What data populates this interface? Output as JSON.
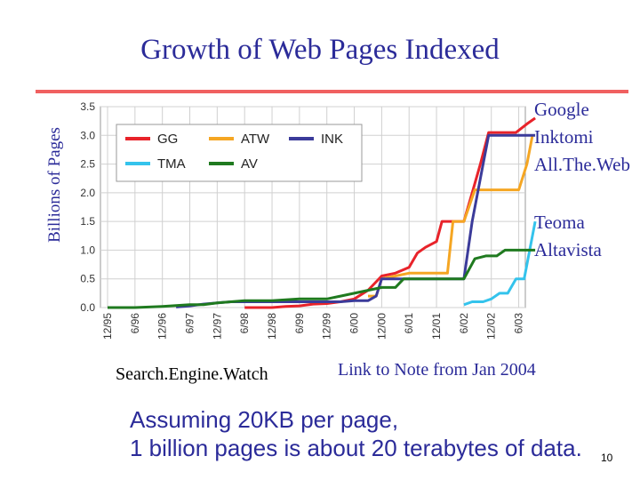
{
  "slide": {
    "title": "Growth of Web Pages Indexed",
    "ylabel": "Billions of Pages",
    "right_labels": [
      "Google",
      "Inktomi",
      "All.The.Web",
      "Teoma",
      "Altavista"
    ],
    "source": "Search.Engine.Watch",
    "note_link": "Link to Note from Jan 2004",
    "assumption_line1": "Assuming 20KB per page,",
    "assumption_line2": "1 billion pages is about 20 terabytes of data.",
    "page_number": "10"
  },
  "colors": {
    "title": "#2b2b99",
    "rule": "#f06060",
    "GG": "#e8232a",
    "ATW": "#f5a623",
    "INK": "#3b3b9a",
    "TMA": "#34c3ec",
    "AV": "#1f7a1f"
  },
  "chart_data": {
    "type": "line",
    "x": [
      "12/95",
      "6/96",
      "12/96",
      "6/97",
      "12/97",
      "6/98",
      "12/98",
      "6/99",
      "12/99",
      "6/00",
      "12/00",
      "6/01",
      "12/01",
      "6/02",
      "12/02",
      "6/03"
    ],
    "ylim": [
      0,
      3.5
    ],
    "yticks": [
      "0.0",
      "0.5",
      "1.0",
      "1.5",
      "2.0",
      "2.5",
      "3.0",
      "3.5"
    ],
    "grid": true,
    "legend_position": "top-left",
    "series": [
      {
        "name": "GG",
        "color": "#e8232a",
        "points": [
          [
            5.0,
            0.0
          ],
          [
            6.0,
            0.0
          ],
          [
            6.5,
            0.02
          ],
          [
            7.0,
            0.03
          ],
          [
            7.5,
            0.06
          ],
          [
            8.0,
            0.07
          ],
          [
            8.5,
            0.1
          ],
          [
            9.0,
            0.15
          ],
          [
            9.5,
            0.3
          ],
          [
            10.0,
            0.55
          ],
          [
            10.5,
            0.6
          ],
          [
            11.0,
            0.7
          ],
          [
            11.3,
            0.95
          ],
          [
            11.6,
            1.05
          ],
          [
            12.0,
            1.15
          ],
          [
            12.2,
            1.5
          ],
          [
            12.6,
            1.5
          ],
          [
            13.0,
            1.5
          ],
          [
            13.3,
            2.0
          ],
          [
            13.6,
            2.5
          ],
          [
            13.9,
            3.05
          ],
          [
            14.5,
            3.05
          ],
          [
            14.9,
            3.05
          ],
          [
            15.3,
            3.2
          ],
          [
            15.6,
            3.3
          ]
        ]
      },
      {
        "name": "ATW",
        "color": "#f5a623",
        "points": [
          [
            9.5,
            0.2
          ],
          [
            9.8,
            0.2
          ],
          [
            10.0,
            0.5
          ],
          [
            10.5,
            0.55
          ],
          [
            11.0,
            0.6
          ],
          [
            12.0,
            0.6
          ],
          [
            12.4,
            0.6
          ],
          [
            12.6,
            1.5
          ],
          [
            13.0,
            1.5
          ],
          [
            13.4,
            2.05
          ],
          [
            13.8,
            2.05
          ],
          [
            14.5,
            2.05
          ],
          [
            15.0,
            2.05
          ],
          [
            15.3,
            2.5
          ],
          [
            15.5,
            3.0
          ]
        ]
      },
      {
        "name": "INK",
        "color": "#3b3b9a",
        "points": [
          [
            2.5,
            0.01
          ],
          [
            3.0,
            0.03
          ],
          [
            3.5,
            0.06
          ],
          [
            4.0,
            0.08
          ],
          [
            4.5,
            0.1
          ],
          [
            5.0,
            0.1
          ],
          [
            6.0,
            0.1
          ],
          [
            7.0,
            0.1
          ],
          [
            8.0,
            0.1
          ],
          [
            8.5,
            0.1
          ],
          [
            9.0,
            0.12
          ],
          [
            9.5,
            0.12
          ],
          [
            9.8,
            0.2
          ],
          [
            10.0,
            0.5
          ],
          [
            11.0,
            0.5
          ],
          [
            12.0,
            0.5
          ],
          [
            12.5,
            0.5
          ],
          [
            13.0,
            0.5
          ],
          [
            13.3,
            1.5
          ],
          [
            13.7,
            2.5
          ],
          [
            13.9,
            3.0
          ],
          [
            14.5,
            3.0
          ],
          [
            15.0,
            3.0
          ],
          [
            15.6,
            3.0
          ]
        ]
      },
      {
        "name": "TMA",
        "color": "#34c3ec",
        "points": [
          [
            13.0,
            0.05
          ],
          [
            13.3,
            0.1
          ],
          [
            13.7,
            0.1
          ],
          [
            14.0,
            0.15
          ],
          [
            14.3,
            0.25
          ],
          [
            14.6,
            0.25
          ],
          [
            14.9,
            0.5
          ],
          [
            15.2,
            0.5
          ],
          [
            15.4,
            1.0
          ],
          [
            15.6,
            1.5
          ]
        ]
      },
      {
        "name": "AV",
        "color": "#1f7a1f",
        "points": [
          [
            0.0,
            0.0
          ],
          [
            1.0,
            0.0
          ],
          [
            2.0,
            0.02
          ],
          [
            3.0,
            0.05
          ],
          [
            3.5,
            0.05
          ],
          [
            4.0,
            0.08
          ],
          [
            4.5,
            0.1
          ],
          [
            5.0,
            0.12
          ],
          [
            6.0,
            0.12
          ],
          [
            7.0,
            0.15
          ],
          [
            8.0,
            0.15
          ],
          [
            8.5,
            0.2
          ],
          [
            9.0,
            0.25
          ],
          [
            9.5,
            0.3
          ],
          [
            10.0,
            0.35
          ],
          [
            10.5,
            0.35
          ],
          [
            10.8,
            0.5
          ],
          [
            11.5,
            0.5
          ],
          [
            12.0,
            0.5
          ],
          [
            12.5,
            0.5
          ],
          [
            13.0,
            0.5
          ],
          [
            13.4,
            0.85
          ],
          [
            13.8,
            0.9
          ],
          [
            14.2,
            0.9
          ],
          [
            14.5,
            1.0
          ],
          [
            15.0,
            1.0
          ],
          [
            15.6,
            1.0
          ]
        ]
      }
    ]
  }
}
